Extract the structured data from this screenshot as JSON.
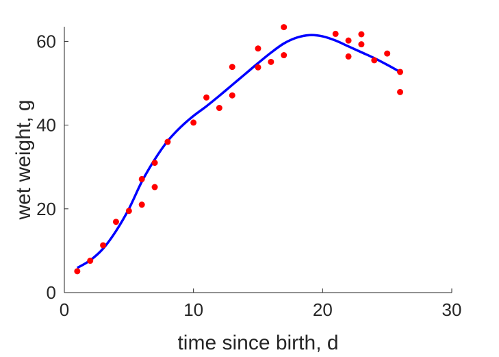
{
  "chart_data": {
    "type": "scatter",
    "xlabel": "time since birth, d",
    "ylabel": "wet weight, g",
    "xlim": [
      0,
      30
    ],
    "ylim": [
      0,
      63.5
    ],
    "xticks": [
      0,
      10,
      20,
      30
    ],
    "yticks": [
      0,
      20,
      40,
      60
    ],
    "grid": false,
    "series": [
      {
        "type": "scatter",
        "color": "#ff0000",
        "x": [
          1,
          2,
          3,
          4,
          5,
          6,
          6,
          7,
          7,
          8,
          10,
          11,
          12,
          13,
          13,
          15,
          15,
          16,
          17,
          17,
          21,
          22,
          22,
          23,
          23,
          24,
          25,
          26,
          26
        ],
        "y": [
          5.1,
          7.6,
          11.3,
          16.9,
          19.5,
          27.1,
          21.0,
          31.0,
          25.2,
          36.0,
          40.6,
          46.6,
          44.1,
          53.9,
          47.1,
          58.3,
          53.8,
          55.1,
          63.4,
          56.7,
          61.8,
          60.2,
          56.4,
          61.7,
          59.3,
          55.5,
          57.1,
          52.7,
          47.9
        ]
      },
      {
        "type": "line",
        "color": "#0000ff",
        "x": [
          1,
          2,
          3,
          4,
          5,
          6,
          7,
          8,
          9,
          10,
          11,
          12,
          13,
          14,
          15,
          16,
          17,
          18,
          19,
          20,
          21,
          22,
          23,
          24,
          25,
          26
        ],
        "y": [
          5.9,
          7.7,
          10.5,
          14.7,
          20.0,
          26.5,
          31.8,
          36.2,
          39.5,
          42.2,
          44.5,
          47.0,
          49.6,
          52.2,
          54.8,
          57.3,
          59.5,
          60.9,
          61.5,
          61.2,
          60.2,
          58.8,
          57.4,
          56.0,
          54.4,
          52.7
        ]
      }
    ]
  }
}
